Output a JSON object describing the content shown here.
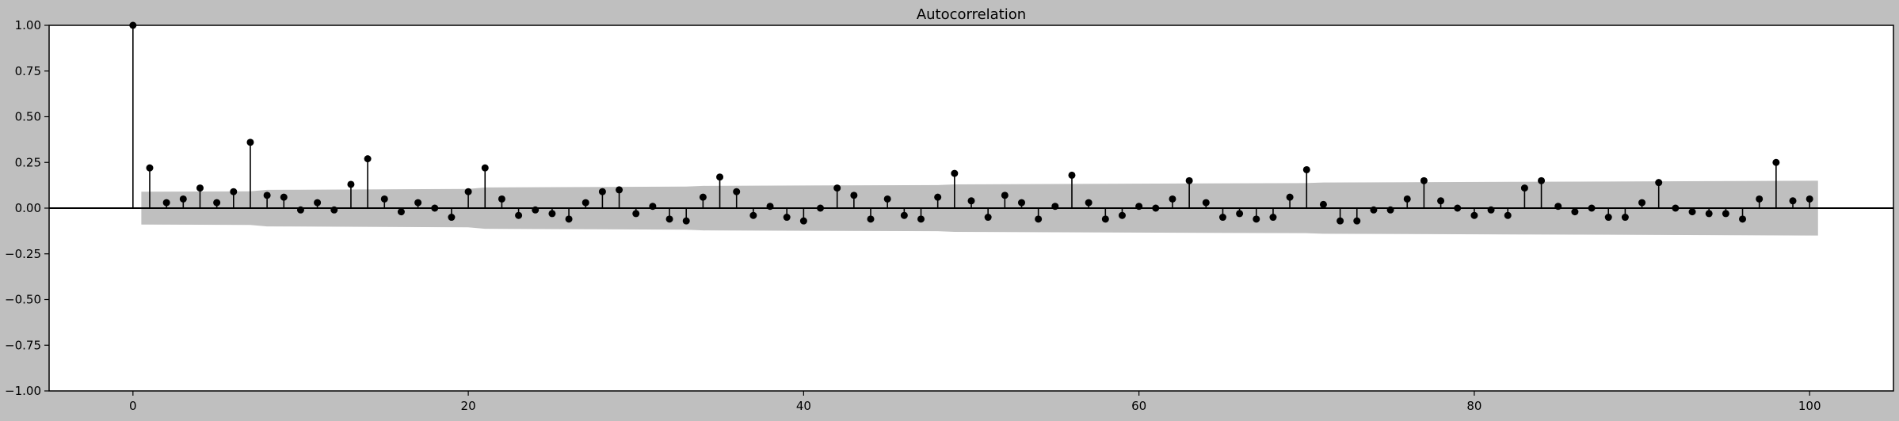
{
  "chart_data": {
    "type": "stem",
    "title": "Autocorrelation",
    "xlabel": "",
    "ylabel": "",
    "xlim": [
      -5,
      105
    ],
    "ylim": [
      -1.0,
      1.0
    ],
    "xticks": [
      0,
      20,
      40,
      60,
      80,
      100
    ],
    "xtick_labels": [
      "0",
      "20",
      "40",
      "60",
      "80",
      "100"
    ],
    "yticks": [
      1.0,
      0.75,
      0.5,
      0.25,
      0.0,
      -0.25,
      -0.5,
      -0.75,
      -1.0
    ],
    "ytick_labels": [
      "1.00",
      "0.75",
      "0.50",
      "0.25",
      "0.00",
      "−0.25",
      "−0.50",
      "−0.75",
      "−1.00"
    ],
    "grid": false,
    "colors": {
      "background": "#bfbfbf",
      "plot_area": "#ffffff",
      "stem": "#000000",
      "confidence_band": "#bfbfbf"
    },
    "lags": [
      0,
      1,
      2,
      3,
      4,
      5,
      6,
      7,
      8,
      9,
      10,
      11,
      12,
      13,
      14,
      15,
      16,
      17,
      18,
      19,
      20,
      21,
      22,
      23,
      24,
      25,
      26,
      27,
      28,
      29,
      30,
      31,
      32,
      33,
      34,
      35,
      36,
      37,
      38,
      39,
      40,
      41,
      42,
      43,
      44,
      45,
      46,
      47,
      48,
      49,
      50,
      51,
      52,
      53,
      54,
      55,
      56,
      57,
      58,
      59,
      60,
      61,
      62,
      63,
      64,
      65,
      66,
      67,
      68,
      69,
      70,
      71,
      72,
      73,
      74,
      75,
      76,
      77,
      78,
      79,
      80,
      81,
      82,
      83,
      84,
      85,
      86,
      87,
      88,
      89,
      90,
      91,
      92,
      93,
      94,
      95,
      96,
      97,
      98,
      99,
      100
    ],
    "acf": [
      1.0,
      0.22,
      0.03,
      0.05,
      0.11,
      0.03,
      0.09,
      0.36,
      0.07,
      0.06,
      -0.01,
      0.03,
      -0.01,
      0.13,
      0.27,
      0.05,
      -0.02,
      0.03,
      0.0,
      -0.05,
      0.09,
      0.22,
      0.05,
      -0.04,
      -0.01,
      -0.03,
      -0.06,
      0.03,
      0.09,
      0.1,
      -0.03,
      0.01,
      -0.06,
      -0.07,
      0.06,
      0.17,
      0.09,
      -0.04,
      0.01,
      -0.05,
      -0.07,
      0.0,
      0.11,
      0.07,
      -0.06,
      0.05,
      -0.04,
      -0.06,
      0.06,
      0.19,
      0.04,
      -0.05,
      0.07,
      0.03,
      -0.06,
      0.01,
      0.18,
      0.03,
      -0.06,
      -0.04,
      0.01,
      0.0,
      0.05,
      0.15,
      0.03,
      -0.05,
      -0.03,
      -0.06,
      -0.05,
      0.06,
      0.21,
      0.02,
      -0.07,
      -0.07,
      -0.01,
      -0.01,
      0.05,
      0.15,
      0.04,
      0.0,
      -0.04,
      -0.01,
      -0.04,
      0.11,
      0.15,
      0.01,
      -0.02,
      0.0,
      -0.05,
      -0.05,
      0.03,
      0.14,
      0.0,
      -0.02,
      -0.03,
      -0.03,
      -0.06,
      0.05,
      0.25,
      0.04,
      0.05
    ],
    "confidence_band": {
      "lags": [
        0.5,
        7,
        8,
        20,
        21,
        33,
        34,
        48,
        49,
        70,
        71,
        100.5
      ],
      "upper": [
        0.09,
        0.092,
        0.1,
        0.105,
        0.113,
        0.118,
        0.122,
        0.126,
        0.13,
        0.137,
        0.14,
        0.15
      ],
      "lower": [
        -0.09,
        -0.092,
        -0.1,
        -0.105,
        -0.113,
        -0.118,
        -0.122,
        -0.126,
        -0.13,
        -0.137,
        -0.14,
        -0.15
      ]
    }
  }
}
